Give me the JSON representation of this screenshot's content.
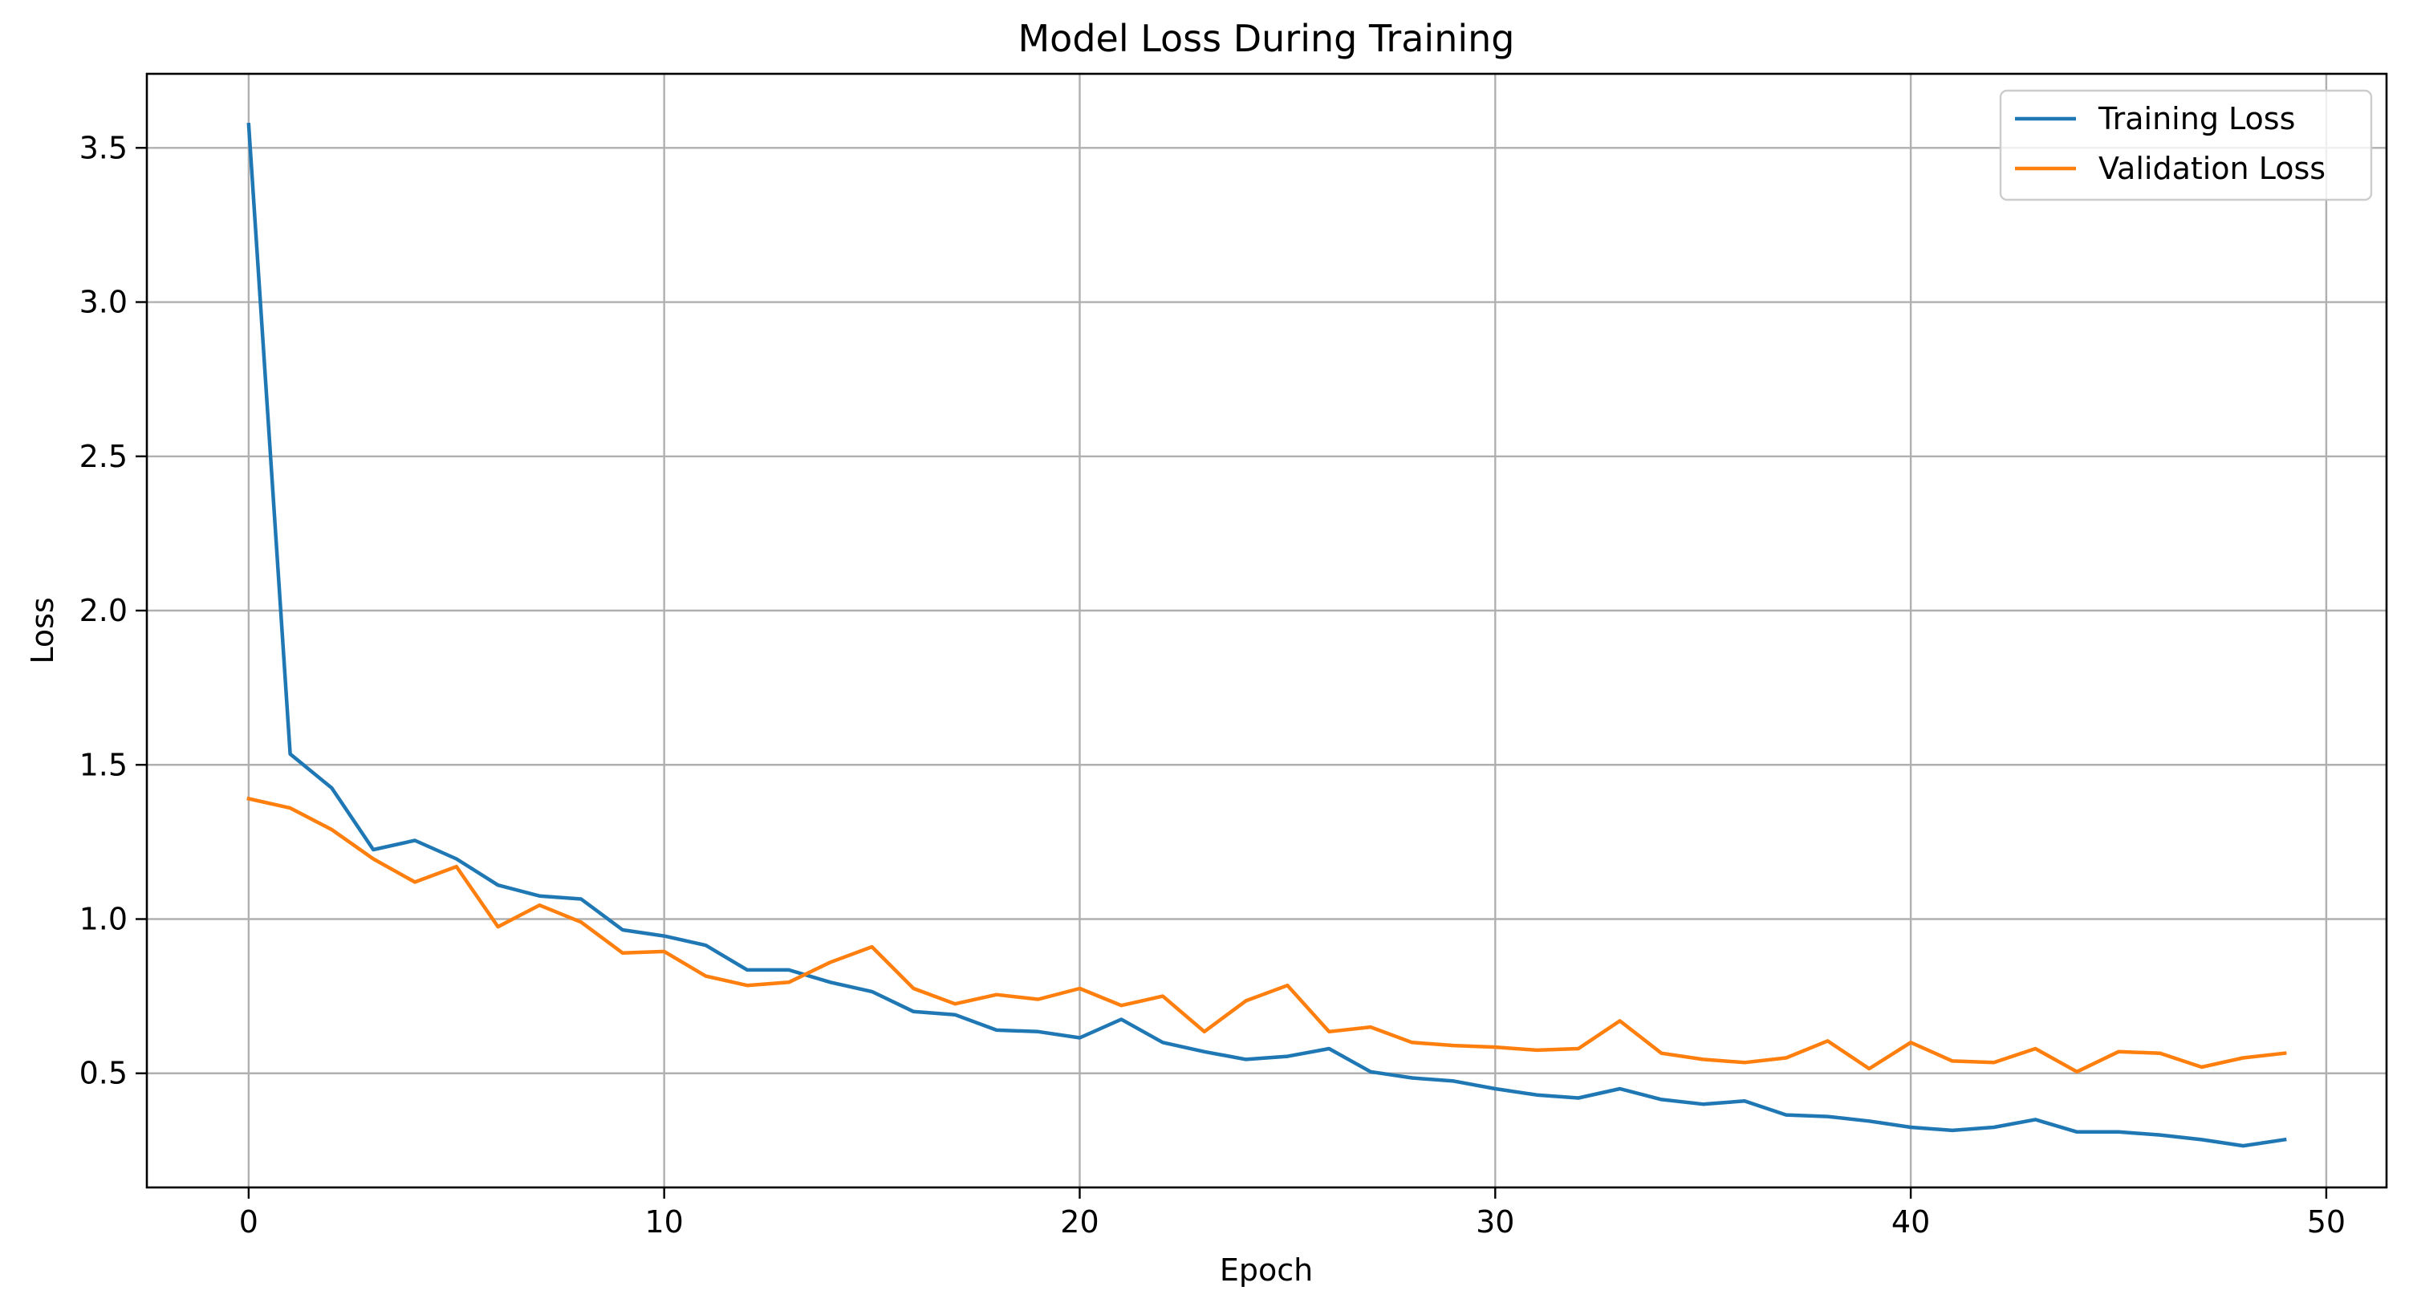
{
  "chart_data": {
    "type": "line",
    "title": "Model Loss During Training",
    "xlabel": "Epoch",
    "ylabel": "Loss",
    "xlim": [
      -2.45,
      51.45
    ],
    "ylim": [
      0.13,
      3.74
    ],
    "xticks": [
      0,
      10,
      20,
      30,
      40,
      50
    ],
    "yticks": [
      0.5,
      1.0,
      1.5,
      2.0,
      2.5,
      3.0,
      3.5
    ],
    "xtick_labels": [
      "0",
      "10",
      "20",
      "30",
      "40",
      "50"
    ],
    "ytick_labels": [
      "0.5",
      "1.0",
      "1.5",
      "2.0",
      "2.5",
      "3.0",
      "3.5"
    ],
    "grid": true,
    "legend_position": "top-right",
    "x": [
      0,
      1,
      2,
      3,
      4,
      5,
      6,
      7,
      8,
      9,
      10,
      11,
      12,
      13,
      14,
      15,
      16,
      17,
      18,
      19,
      20,
      21,
      22,
      23,
      24,
      25,
      26,
      27,
      28,
      29,
      30,
      31,
      32,
      33,
      34,
      35,
      36,
      37,
      38,
      39,
      40,
      41,
      42,
      43,
      44,
      45,
      46,
      47,
      48,
      49
    ],
    "series": [
      {
        "name": "Training Loss",
        "color": "#1f77b4",
        "values": [
          3.575,
          1.535,
          1.425,
          1.225,
          1.255,
          1.195,
          1.11,
          1.075,
          1.065,
          0.965,
          0.945,
          0.915,
          0.835,
          0.835,
          0.795,
          0.765,
          0.7,
          0.69,
          0.64,
          0.635,
          0.615,
          0.675,
          0.6,
          0.57,
          0.545,
          0.555,
          0.58,
          0.505,
          0.485,
          0.475,
          0.45,
          0.43,
          0.42,
          0.45,
          0.415,
          0.4,
          0.41,
          0.365,
          0.36,
          0.345,
          0.325,
          0.315,
          0.325,
          0.35,
          0.31,
          0.31,
          0.3,
          0.285,
          0.265,
          0.285
        ]
      },
      {
        "name": "Validation Loss",
        "color": "#ff7f0e",
        "values": [
          1.39,
          1.36,
          1.29,
          1.195,
          1.12,
          1.17,
          0.975,
          1.045,
          0.99,
          0.89,
          0.895,
          0.815,
          0.785,
          0.795,
          0.86,
          0.91,
          0.775,
          0.725,
          0.755,
          0.74,
          0.775,
          0.72,
          0.75,
          0.635,
          0.735,
          0.785,
          0.635,
          0.65,
          0.6,
          0.59,
          0.585,
          0.575,
          0.58,
          0.67,
          0.565,
          0.545,
          0.535,
          0.55,
          0.605,
          0.515,
          0.6,
          0.54,
          0.535,
          0.58,
          0.505,
          0.57,
          0.565,
          0.52,
          0.55,
          0.565
        ]
      }
    ]
  }
}
